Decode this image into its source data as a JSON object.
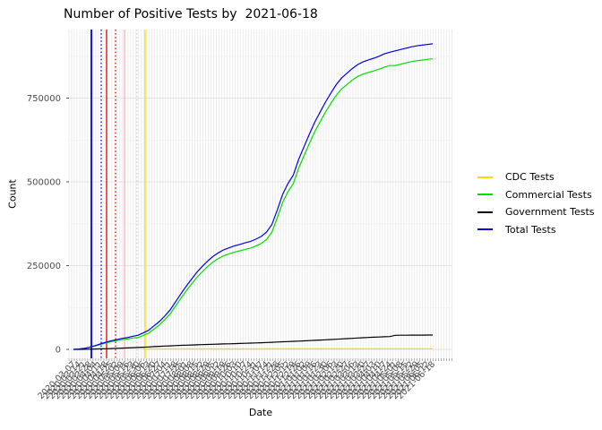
{
  "chart_data": {
    "type": "line",
    "title": "Number of Positive Tests by  2021-06-18",
    "xlabel": "Date",
    "ylabel": "Count",
    "legend_position": "right",
    "grid": true,
    "ylim": [
      0,
      954000
    ],
    "y_ticks": [
      {
        "label": "0",
        "value": 0
      },
      {
        "label": "250000",
        "value": 250000
      },
      {
        "label": "500000",
        "value": 500000
      },
      {
        "label": "750000",
        "value": 750000
      }
    ],
    "y_minor_ticks": [
      125000,
      375000,
      625000,
      875000
    ],
    "x": [
      "2020-03-07",
      "2020-03-14",
      "2020-03-21",
      "2020-03-28",
      "2020-04-04",
      "2020-04-11",
      "2020-04-18",
      "2020-04-25",
      "2020-05-02",
      "2020-05-09",
      "2020-05-16",
      "2020-05-23",
      "2020-05-30",
      "2020-06-06",
      "2020-06-13",
      "2020-06-20",
      "2020-06-27",
      "2020-07-04",
      "2020-07-11",
      "2020-07-18",
      "2020-07-25",
      "2020-08-01",
      "2020-08-08",
      "2020-08-15",
      "2020-08-22",
      "2020-08-29",
      "2020-09-05",
      "2020-09-12",
      "2020-09-19",
      "2020-09-26",
      "2020-10-03",
      "2020-10-10",
      "2020-10-17",
      "2020-10-24",
      "2020-10-31",
      "2020-11-07",
      "2020-11-14",
      "2020-11-21",
      "2020-11-28",
      "2020-12-05",
      "2020-12-12",
      "2020-12-19",
      "2020-12-26",
      "2021-01-02",
      "2021-01-09",
      "2021-01-16",
      "2021-01-23",
      "2021-01-30",
      "2021-02-06",
      "2021-02-13",
      "2021-02-20",
      "2021-02-27",
      "2021-03-06",
      "2021-03-13",
      "2021-03-20",
      "2021-03-27",
      "2021-04-03",
      "2021-04-10",
      "2021-04-17",
      "2021-04-24",
      "2021-05-01",
      "2021-05-08",
      "2021-05-15",
      "2021-05-22",
      "2021-05-29",
      "2021-06-05",
      "2021-06-12",
      "2021-06-18"
    ],
    "series": [
      {
        "name": "CDC Tests",
        "color": "#FFD700",
        "values": [
          null,
          null,
          null,
          null,
          null,
          null,
          null,
          null,
          null,
          null,
          null,
          null,
          null,
          1200,
          1300,
          1300,
          1300,
          1300,
          1300,
          1300,
          1400,
          1400,
          1400,
          1400,
          1400,
          1400,
          1400,
          1400,
          1400,
          1400,
          1400,
          1400,
          1400,
          1400,
          1400,
          1400,
          1500,
          1500,
          1500,
          1500,
          1500,
          1500,
          1500,
          1500,
          1500,
          1500,
          1600,
          1600,
          1600,
          1600,
          1600,
          1600,
          1700,
          1700,
          1700,
          1700,
          1700,
          1700,
          1800,
          1800,
          1800,
          1800,
          1800,
          1900,
          1900,
          1900,
          1900,
          2000
        ]
      },
      {
        "name": "Commercial Tests",
        "color": "#00DE00",
        "values": [
          0,
          900,
          2700,
          5900,
          10000,
          14500,
          19000,
          23000,
          25900,
          28800,
          30700,
          34000,
          35100,
          41200,
          48400,
          60500,
          72700,
          87900,
          105200,
          128400,
          151700,
          174100,
          194500,
          214900,
          231400,
          246900,
          260400,
          270900,
          279400,
          284900,
          290400,
          293900,
          298400,
          301900,
          308300,
          315700,
          328000,
          349300,
          391600,
          437900,
          470200,
          494600,
          540900,
          578200,
          614400,
          649600,
          678800,
          708000,
          734100,
          758100,
          777200,
          790300,
          803400,
          814400,
          821500,
          826700,
          831000,
          836300,
          842600,
          847000,
          847200,
          851000,
          854900,
          858700,
          861600,
          863500,
          865400,
          867200
        ]
      },
      {
        "name": "Government Tests",
        "color": "#000000",
        "values": [
          0,
          100,
          300,
          600,
          1000,
          1500,
          2000,
          2500,
          3100,
          3700,
          4300,
          5000,
          5700,
          6500,
          7300,
          8200,
          9000,
          9800,
          10500,
          11200,
          11900,
          12500,
          13100,
          13700,
          14200,
          14700,
          15200,
          15700,
          16200,
          16700,
          17200,
          17700,
          18200,
          18700,
          19300,
          19900,
          20500,
          21200,
          21900,
          22600,
          23300,
          24000,
          24700,
          25400,
          26100,
          26900,
          27700,
          28500,
          29400,
          30300,
          31200,
          32100,
          33000,
          33900,
          34800,
          35600,
          36300,
          37000,
          37600,
          38200,
          42000,
          42200,
          42300,
          42400,
          42500,
          42600,
          42700,
          42800
        ]
      },
      {
        "name": "Total Tests",
        "color": "#0000E6",
        "values": [
          0,
          1000,
          3000,
          6500,
          11000,
          16000,
          21000,
          25500,
          29000,
          32500,
          35000,
          39000,
          42000,
          49000,
          57000,
          70000,
          83000,
          99000,
          117000,
          141000,
          165000,
          188000,
          209000,
          230000,
          247000,
          263000,
          277000,
          288000,
          297000,
          303000,
          309000,
          313000,
          318000,
          322000,
          329000,
          337000,
          350000,
          372000,
          415000,
          462000,
          495000,
          520000,
          567000,
          605000,
          642000,
          678000,
          708000,
          738000,
          765000,
          790000,
          810000,
          824000,
          838000,
          850000,
          858000,
          864000,
          869000,
          875000,
          882000,
          887000,
          891000,
          895000,
          899000,
          903000,
          906000,
          908000,
          910000,
          912000
        ]
      }
    ],
    "vlines": [
      {
        "color": "#0000E6",
        "style": "solid",
        "at_index": 3.34
      },
      {
        "color": "#0000E6",
        "style": "dotted",
        "at_index": 5.18
      },
      {
        "color": "#E00000",
        "style": "solid",
        "at_index": 6.18
      },
      {
        "color": "#E00000",
        "style": "dotted",
        "at_index": 7.85
      },
      {
        "color": "#FFB3BE",
        "style": "solid",
        "at_index": 9.52
      },
      {
        "color": "#FFB3BE",
        "style": "dotted",
        "at_index": 11.86
      },
      {
        "color": "#FFD700",
        "style": "solid",
        "at_index": 13.37
      }
    ],
    "colors": {
      "grid_vertical": "#EBEBEB",
      "grid_major": "#E3E3E3",
      "grid_minor": "#F1F1F1",
      "axis_text": "#4D4D4D",
      "tick_mark": "#888888"
    }
  }
}
